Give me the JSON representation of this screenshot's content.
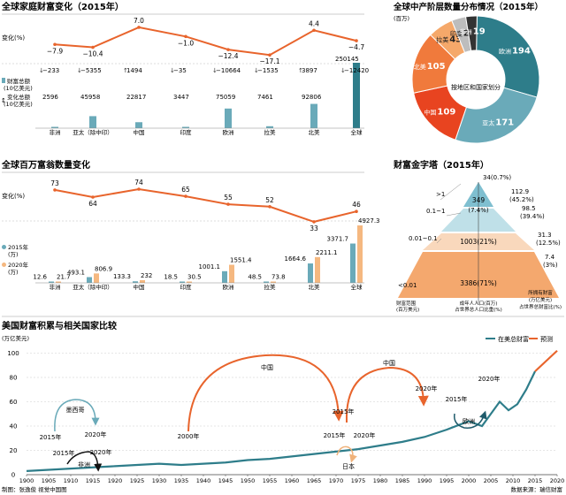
{
  "panel1": {
    "title": "全球家庭财富变化（2015年）",
    "change_label": "变化(%)",
    "legend_total": "财富总额",
    "legend_total_unit": "(10亿美元)",
    "legend_change": "变化总额",
    "legend_change_unit": "(10亿美元)"
  },
  "panel2": {
    "title": "全球中产阶层数量分布情况（2015年）",
    "unit": "(百万)",
    "center_label": "按地区和国家划分"
  },
  "panel3": {
    "title": "全球百万富翁数量变化",
    "change_label": "变化(%)",
    "legend_2015": "2015年",
    "legend_2015_unit": "(万)",
    "legend_2020": "2020年",
    "legend_2020_unit": "(万)"
  },
  "panel4": {
    "title": "财富金字塔（2015年）",
    "bands": [
      ">1",
      "0.1~1",
      "0.01~0.1",
      "<0.01"
    ],
    "band_values": [
      "349",
      "(7.4%)",
      "1003(21%)",
      "3386(71%)"
    ],
    "top_label": "34(0.7%)",
    "right_labels": [
      "112.9",
      "(45.2%)",
      "98.5",
      "(39.4%)",
      "31.3",
      "(12.5%)",
      "7.4",
      "(3%)"
    ],
    "footer_left": [
      "财富范围",
      "(百万美元)"
    ],
    "footer_mid": [
      "成年人人口(百万)",
      "占世界总人口比重(%)"
    ],
    "footer_right": [
      "所拥有财富",
      "(万亿美元)",
      "占世界总财富比(%)"
    ]
  },
  "panel5": {
    "title": "美国财富积累与相关国家比较",
    "unit": "(万亿美元)",
    "legend_total": "在美总财富",
    "legend_forecast": "预测",
    "annotations": [
      {
        "id": "mexico",
        "label": "墨西哥"
      },
      {
        "id": "mx-2015",
        "label": "2015年"
      },
      {
        "id": "mx-2020",
        "label": "2020年"
      },
      {
        "id": "africa",
        "label": "非洲"
      },
      {
        "id": "af-2015",
        "label": "2015年"
      },
      {
        "id": "af-2020",
        "label": "2020年"
      },
      {
        "id": "china1",
        "label": "中国"
      },
      {
        "id": "cn1-2000",
        "label": "2000年"
      },
      {
        "id": "cn1-2015",
        "label": "2015年"
      },
      {
        "id": "china2",
        "label": "中国"
      },
      {
        "id": "cn2-2020",
        "label": "2020年"
      },
      {
        "id": "japan",
        "label": "日本"
      },
      {
        "id": "jp-2015",
        "label": "2015年"
      },
      {
        "id": "jp-2020",
        "label": "2020年"
      },
      {
        "id": "europe",
        "label": "欧洲"
      },
      {
        "id": "eu-2015",
        "label": "2015年"
      },
      {
        "id": "eu-2020",
        "label": "2020年"
      }
    ]
  },
  "footer": {
    "left": "制图：张逸俊  视觉中国图",
    "right": "数据来源：瑞信财富"
  },
  "colors": {
    "teal": "#6aaab9",
    "dark_teal": "#2e7d8a",
    "orange": "#e8642c",
    "light_orange": "#f5b880",
    "grey": "#444"
  },
  "chart_data": [
    {
      "type": "bar",
      "categories": [
        "非洲",
        "亚太（除中印）",
        "中国",
        "印度",
        "欧洲",
        "拉美",
        "北美",
        "全球"
      ],
      "series": [
        {
          "values": [
            2596,
            45958,
            22817,
            3447,
            75059,
            7461,
            92806,
            250145
          ]
        }
      ],
      "change_amount": [
        -233,
        -5355,
        1494,
        -35,
        -10664,
        -1535,
        3897,
        -12420
      ],
      "change_pct": [
        -7.9,
        -10.4,
        7.0,
        -1.0,
        -12.4,
        -17.1,
        4.4,
        -4.7
      ]
    },
    {
      "type": "pie",
      "labels": [
        "欧洲",
        "亚太",
        "中国",
        "北美",
        "拉美",
        "印度",
        "非洲"
      ],
      "values": [
        194,
        171,
        109,
        105,
        43,
        24,
        19
      ],
      "colors": [
        "#2e7d8a",
        "#6aaab9",
        "#e84420",
        "#f07a3c",
        "#f5a86a",
        "#bdbdbd",
        "#333333"
      ]
    },
    {
      "type": "bar",
      "categories": [
        "非洲",
        "亚太（除中印）",
        "中国",
        "印度",
        "欧洲",
        "拉美",
        "北美",
        "全球"
      ],
      "series": [
        {
          "name": "2015年",
          "values": [
            12.6,
            493.1,
            133.3,
            18.5,
            1001.1,
            48.5,
            1664.6,
            3371.7
          ]
        },
        {
          "name": "2020年",
          "values": [
            21.7,
            806.9,
            232,
            30.5,
            1551.4,
            73.8,
            2211.1,
            4927.3
          ]
        }
      ],
      "change_pct": [
        73,
        64,
        74,
        65,
        55,
        52,
        33,
        46
      ]
    },
    {
      "type": "line",
      "x": [
        1900,
        1905,
        1910,
        1915,
        1920,
        1925,
        1930,
        1935,
        1940,
        1945,
        1950,
        1955,
        1960,
        1965,
        1970,
        1975,
        1980,
        1985,
        1990,
        1995,
        2000,
        2003,
        2005,
        2007,
        2009,
        2011,
        2013,
        2015
      ],
      "series": [
        {
          "name": "在美总财富",
          "values": [
            3,
            4,
            5,
            6,
            7,
            8,
            9,
            8,
            9,
            10,
            12,
            13,
            15,
            17,
            19,
            21,
            24,
            27,
            31,
            37,
            44,
            40,
            50,
            60,
            53,
            58,
            70,
            85
          ]
        },
        {
          "name": "预测",
          "x": [
            2015,
            2020
          ],
          "values": [
            85,
            102
          ]
        }
      ],
      "xlim": [
        1900,
        2020
      ],
      "ylim": [
        0,
        120
      ],
      "yticks": [
        0,
        20,
        40,
        60,
        80,
        100,
        120
      ],
      "xticks": [
        1900,
        1905,
        1910,
        1915,
        1920,
        1925,
        1930,
        1935,
        1940,
        1945,
        1950,
        1955,
        1960,
        1965,
        1970,
        1975,
        1980,
        1985,
        1990,
        1995,
        2000,
        2005,
        2010,
        2015,
        2020
      ]
    }
  ]
}
